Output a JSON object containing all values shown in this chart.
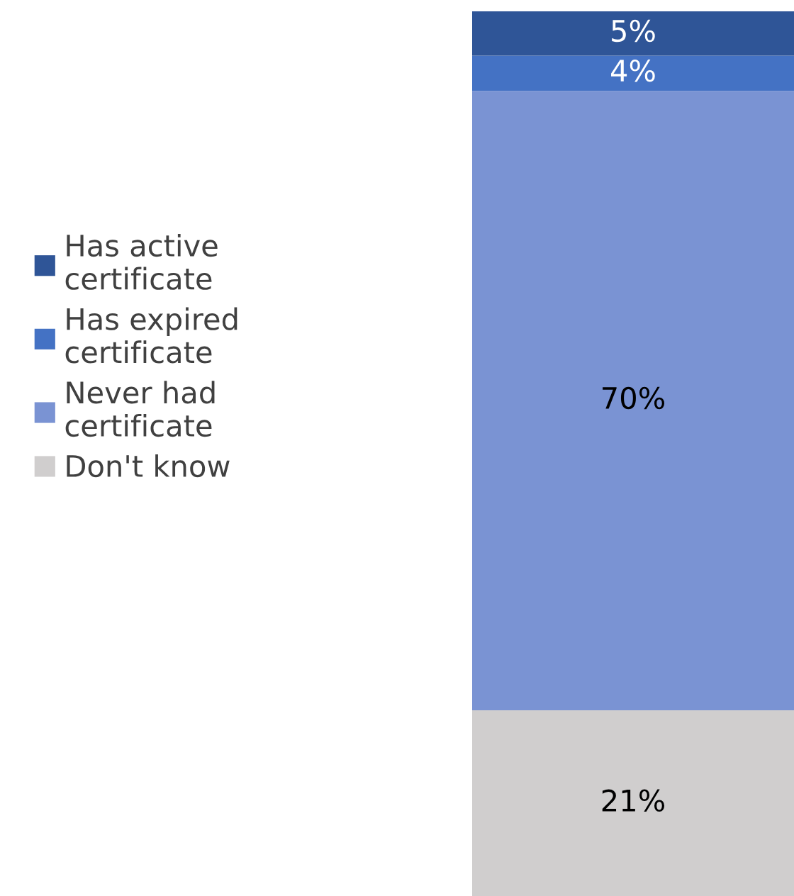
{
  "chart_data": {
    "type": "bar",
    "categories": [
      null
    ],
    "stacked": true,
    "legend": "left",
    "series": [
      {
        "name": "Don't know",
        "color": "#d0cece",
        "values": [
          21
        ],
        "value_labels": [
          "21%"
        ]
      },
      {
        "name": "Never had certificate",
        "color": "#7a93d3",
        "values": [
          70
        ],
        "value_labels": [
          "70%"
        ]
      },
      {
        "name": "Has expired certificate",
        "color": "#4472c4",
        "values": [
          4
        ],
        "value_labels": [
          "4%"
        ]
      },
      {
        "name": "Has active certificate",
        "color": "#2f5597",
        "values": [
          5
        ],
        "value_labels": [
          "5%"
        ]
      }
    ]
  }
}
